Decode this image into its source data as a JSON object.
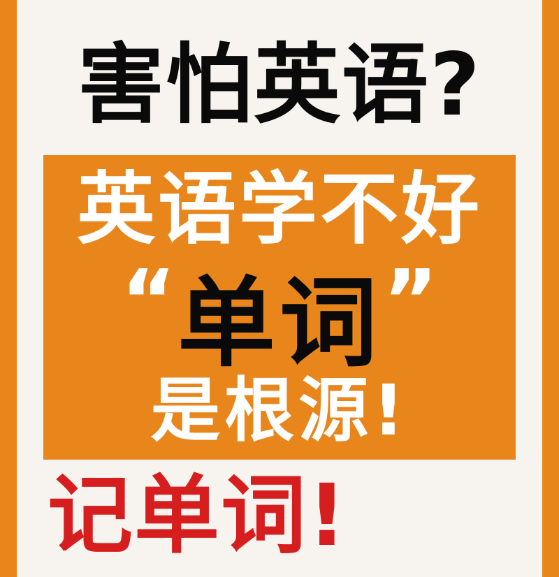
{
  "headline": "害怕英语?",
  "panel": {
    "line1": "英语学不好",
    "open_quote": "“",
    "keyword": "单词",
    "close_quote": "”",
    "line3": "是根源!"
  },
  "footer": "记单词!",
  "colors": {
    "border": "#E8861C",
    "background": "#F7F4F0",
    "panel": "#E8861C",
    "headline_text": "#0A0A0A",
    "panel_text": "#FFFFFF",
    "keyword_text": "#0A0A0A",
    "footer_text": "#D71E1E"
  }
}
